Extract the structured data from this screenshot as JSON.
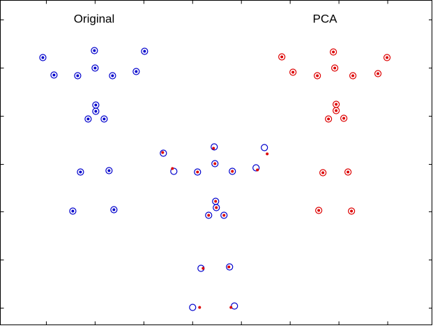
{
  "chart_data": {
    "type": "scatter",
    "annotations": [
      "Original",
      "PCA"
    ],
    "xlim": [
      0,
      620
    ],
    "ylim": [
      0,
      465
    ],
    "xticks": [
      66,
      136,
      206,
      276,
      346,
      416,
      486,
      556
    ],
    "yticks": [
      24,
      93,
      162,
      230,
      299,
      368,
      437
    ],
    "series": [
      {
        "color": "#0000cc",
        "marker": "circle-dot",
        "x": [
          61,
          135,
          207,
          77,
          111,
          136,
          161,
          195,
          137,
          137,
          126,
          149,
          115,
          156,
          104,
          163
        ],
        "values": [
          383,
          393,
          392,
          358,
          357,
          368,
          357,
          363,
          315,
          306,
          295,
          295,
          219,
          221,
          163,
          165
        ]
      },
      {
        "color": "#dd0000",
        "marker": "circle-dot",
        "x": [
          404,
          478,
          555,
          420,
          455,
          480,
          506,
          542,
          482,
          482,
          471,
          493,
          463,
          499,
          457,
          504
        ],
        "values": [
          384,
          391,
          383,
          362,
          357,
          368,
          357,
          360,
          316,
          307,
          295,
          296,
          218,
          219,
          164,
          163
        ]
      },
      {
        "color": "#0000cc",
        "marker": "circle",
        "x": [
          234,
          307,
          379,
          249,
          283,
          308,
          333,
          367,
          309,
          310,
          299,
          321,
          288,
          329,
          276,
          336
        ],
        "values": [
          246,
          255,
          254,
          220,
          219,
          231,
          220,
          225,
          177,
          168,
          157,
          157,
          81,
          83,
          25,
          27
        ]
      },
      {
        "color": "#dd0000",
        "marker": "dot",
        "x": [
          233,
          306,
          383,
          247,
          283,
          308,
          333,
          369,
          309,
          310,
          299,
          321,
          291,
          328,
          286,
          331
        ],
        "values": [
          247,
          253,
          245,
          224,
          219,
          231,
          220,
          222,
          177,
          168,
          157,
          157,
          81,
          83,
          25,
          25
        ]
      }
    ]
  }
}
